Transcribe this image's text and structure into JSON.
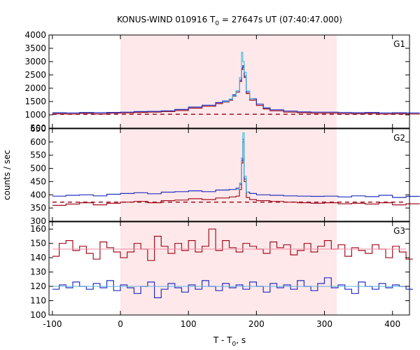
{
  "title_main": "KONUS-WIND 010916 T",
  "title_sub": "0",
  "title_rest": " = 27647s UT (07:40:47.000)",
  "xlabel_main": "T - T",
  "xlabel_sub": "0",
  "xlabel_rest": ", s",
  "ylabel": "counts / sec",
  "colors": {
    "background_band": "#ffe8ea",
    "red_series": "#a01020",
    "blue_series": "#2030c0",
    "cyan_series": "#40c0e0",
    "pink_fit": "#f08aa0",
    "ref_line": "#60b0e0"
  },
  "chart_data": [
    {
      "type": "line",
      "panel": "G1",
      "step": true,
      "x_range": [
        -105,
        425
      ],
      "ylim": [
        500,
        4000
      ],
      "yticks": [
        500,
        1000,
        1500,
        2000,
        2500,
        3000,
        3500,
        4000
      ],
      "highlight_interval": [
        0,
        318
      ],
      "series": [
        {
          "role": "red",
          "x": [
            -100,
            -80,
            -60,
            -40,
            -20,
            0,
            20,
            40,
            60,
            80,
            100,
            120,
            140,
            150,
            160,
            165,
            170,
            175,
            178,
            180,
            182,
            185,
            190,
            200,
            210,
            220,
            240,
            260,
            280,
            300,
            320,
            340,
            360,
            380,
            400,
            420
          ],
          "y": [
            1040,
            1030,
            1050,
            1030,
            1060,
            1070,
            1090,
            1100,
            1120,
            1160,
            1250,
            1320,
            1420,
            1480,
            1550,
            1700,
            1850,
            2250,
            2700,
            2800,
            2400,
            1800,
            1550,
            1350,
            1220,
            1150,
            1100,
            1080,
            1060,
            1060,
            1040,
            1040,
            1050,
            1030,
            1040,
            1030
          ]
        },
        {
          "role": "blue",
          "x": [
            -100,
            -80,
            -60,
            -40,
            -20,
            0,
            20,
            40,
            60,
            80,
            100,
            120,
            140,
            150,
            160,
            165,
            170,
            175,
            178,
            180,
            182,
            185,
            190,
            200,
            210,
            220,
            240,
            260,
            280,
            300,
            320,
            340,
            360,
            380,
            400,
            420
          ],
          "y": [
            1080,
            1070,
            1090,
            1080,
            1090,
            1100,
            1120,
            1130,
            1150,
            1200,
            1290,
            1360,
            1460,
            1520,
            1590,
            1750,
            1900,
            2300,
            2750,
            2850,
            2450,
            1850,
            1600,
            1400,
            1260,
            1190,
            1140,
            1110,
            1100,
            1100,
            1090,
            1080,
            1090,
            1070,
            1080,
            1070
          ]
        },
        {
          "role": "cyan",
          "x": [
            150,
            160,
            165,
            170,
            175,
            178,
            180,
            182,
            185,
            190
          ],
          "y": [
            1500,
            1580,
            1720,
            1900,
            2400,
            3350,
            3000,
            2600,
            1900,
            1600
          ]
        },
        {
          "role": "dashed-background",
          "x": [
            -100,
            420
          ],
          "y": [
            1020,
            1020
          ]
        }
      ]
    },
    {
      "type": "line",
      "panel": "G2",
      "step": true,
      "x_range": [
        -105,
        425
      ],
      "ylim": [
        300,
        650
      ],
      "yticks": [
        300,
        350,
        400,
        450,
        500,
        550,
        600,
        650
      ],
      "highlight_interval": [
        0,
        318
      ],
      "series": [
        {
          "role": "red",
          "x": [
            -100,
            -80,
            -60,
            -40,
            -20,
            0,
            20,
            40,
            60,
            80,
            100,
            120,
            140,
            160,
            170,
            175,
            178,
            180,
            182,
            185,
            190,
            200,
            220,
            240,
            260,
            280,
            300,
            320,
            340,
            360,
            380,
            400,
            420
          ],
          "y": [
            360,
            365,
            370,
            362,
            368,
            372,
            375,
            370,
            378,
            380,
            385,
            382,
            388,
            392,
            395,
            420,
            520,
            600,
            450,
            390,
            382,
            378,
            375,
            372,
            370,
            368,
            370,
            366,
            368,
            365,
            370,
            362,
            366
          ]
        },
        {
          "role": "blue",
          "x": [
            -100,
            -80,
            -60,
            -40,
            -20,
            0,
            20,
            40,
            60,
            80,
            100,
            120,
            140,
            160,
            170,
            175,
            178,
            180,
            182,
            185,
            190,
            200,
            220,
            240,
            260,
            280,
            300,
            320,
            340,
            360,
            380,
            400,
            420
          ],
          "y": [
            395,
            398,
            400,
            396,
            402,
            405,
            408,
            404,
            410,
            412,
            415,
            412,
            418,
            420,
            425,
            440,
            530,
            610,
            460,
            410,
            405,
            400,
            398,
            396,
            395,
            394,
            395,
            392,
            396,
            393,
            398,
            390,
            394
          ]
        },
        {
          "role": "cyan",
          "x": [
            170,
            175,
            178,
            180,
            182,
            185
          ],
          "y": [
            420,
            445,
            540,
            635,
            470,
            410
          ]
        },
        {
          "role": "dashed-background",
          "x": [
            -100,
            420
          ],
          "y": [
            372,
            372
          ]
        }
      ]
    },
    {
      "type": "line",
      "panel": "G3",
      "step": true,
      "x_range": [
        -105,
        425
      ],
      "ylim": [
        100,
        165
      ],
      "yticks": [
        100,
        110,
        120,
        130,
        140,
        150,
        160
      ],
      "highlight_interval": [
        0,
        318
      ],
      "series": [
        {
          "role": "red",
          "x": [
            -100,
            -90,
            -80,
            -70,
            -60,
            -50,
            -40,
            -30,
            -20,
            -10,
            0,
            10,
            20,
            30,
            40,
            50,
            60,
            70,
            80,
            90,
            100,
            110,
            120,
            130,
            140,
            150,
            160,
            170,
            180,
            190,
            200,
            210,
            220,
            230,
            240,
            250,
            260,
            270,
            280,
            290,
            300,
            310,
            320,
            330,
            340,
            350,
            360,
            370,
            380,
            390,
            400,
            410,
            420
          ],
          "y": [
            141,
            150,
            152,
            145,
            148,
            143,
            139,
            151,
            147,
            144,
            140,
            144,
            150,
            146,
            138,
            155,
            148,
            143,
            150,
            145,
            152,
            144,
            148,
            160,
            145,
            152,
            147,
            144,
            150,
            148,
            146,
            143,
            151,
            147,
            149,
            142,
            145,
            150,
            144,
            148,
            152,
            146,
            149,
            141,
            147,
            145,
            143,
            149,
            146,
            140,
            148,
            144,
            139
          ]
        },
        {
          "role": "blue",
          "x": [
            -100,
            -90,
            -80,
            -70,
            -60,
            -50,
            -40,
            -30,
            -20,
            -10,
            0,
            10,
            20,
            30,
            40,
            50,
            60,
            70,
            80,
            90,
            100,
            110,
            120,
            130,
            140,
            150,
            160,
            170,
            180,
            190,
            200,
            210,
            220,
            230,
            240,
            250,
            260,
            270,
            280,
            290,
            300,
            310,
            320,
            330,
            340,
            350,
            360,
            370,
            380,
            390,
            400,
            410,
            420
          ],
          "y": [
            118,
            121,
            119,
            123,
            120,
            118,
            122,
            119,
            124,
            117,
            121,
            119,
            115,
            120,
            123,
            112,
            118,
            122,
            119,
            116,
            121,
            118,
            124,
            120,
            117,
            122,
            119,
            121,
            118,
            123,
            120,
            116,
            122,
            119,
            121,
            118,
            124,
            120,
            117,
            122,
            126,
            119,
            121,
            118,
            115,
            123,
            120,
            118,
            122,
            119,
            121,
            120,
            118
          ]
        },
        {
          "role": "pink-fit",
          "x": [
            -100,
            420
          ],
          "y": [
            146,
            146
          ]
        },
        {
          "role": "ref-line",
          "x": [
            -100,
            420
          ],
          "y": [
            120,
            120
          ]
        }
      ]
    }
  ],
  "panel_labels": [
    "G1",
    "G2",
    "G3"
  ],
  "xticks": [
    -100,
    0,
    100,
    200,
    300,
    400
  ]
}
